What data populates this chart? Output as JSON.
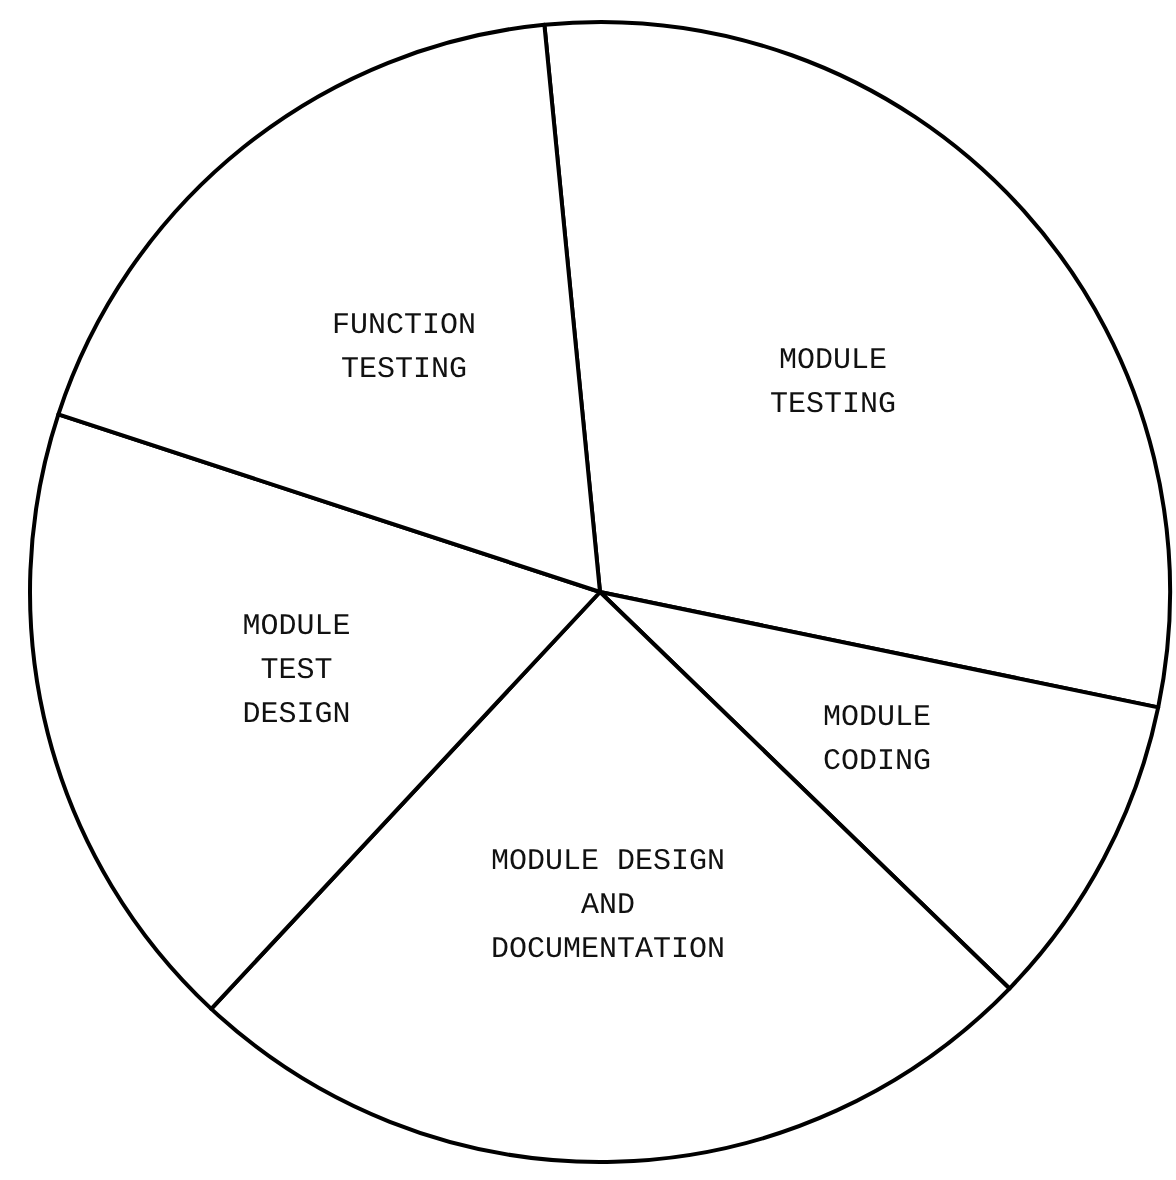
{
  "chart_data": {
    "type": "pie",
    "categories": [
      "MODULE\nTESTING",
      "MODULE\nCODING",
      "MODULE DESIGN\nAND\nDOCUMENTATION",
      "MODULE\nTEST\nDESIGN",
      "FUNCTION\nTESTING"
    ],
    "values": [
      29.8,
      9,
      24.7,
      18.1,
      18.4
    ],
    "colors": [
      "#ffffff",
      "#ffffff",
      "#ffffff",
      "#ffffff",
      "#ffffff"
    ]
  }
}
